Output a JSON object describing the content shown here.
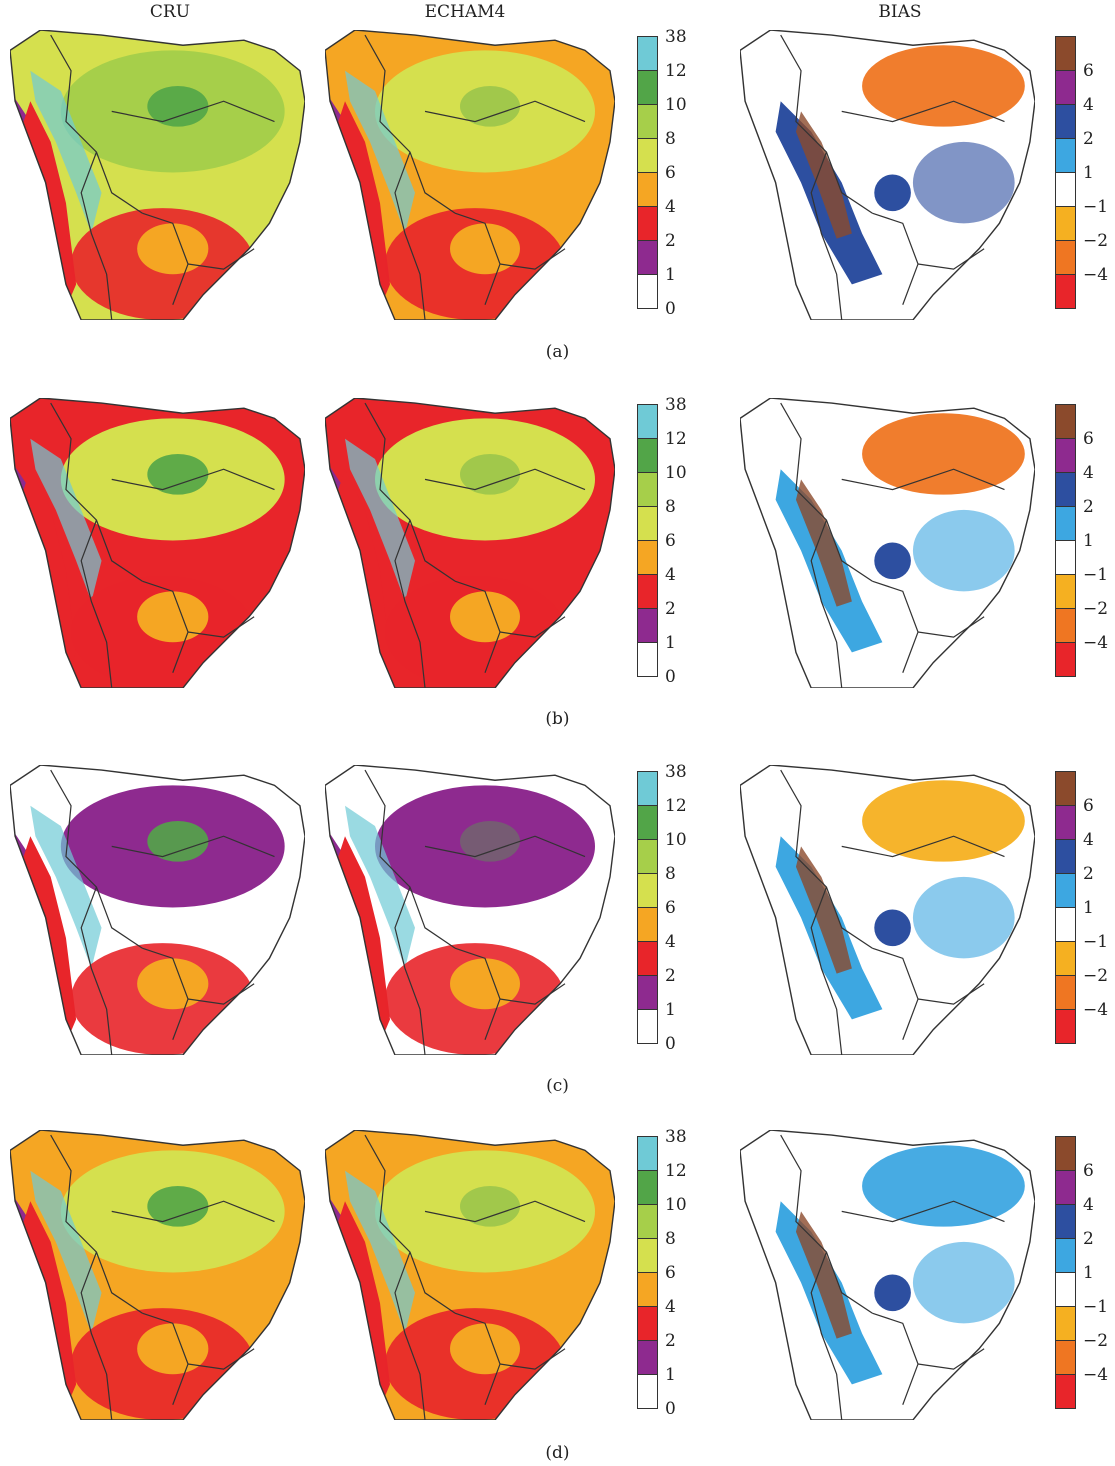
{
  "column_titles": [
    "CRU",
    "ECHAM4",
    "BIAS"
  ],
  "panel_labels": [
    "(a)",
    "(b)",
    "(c)",
    "(d)"
  ],
  "legend_abs": {
    "ticks": [
      "38",
      "12",
      "10",
      "8",
      "6",
      "4",
      "2",
      "1",
      "0"
    ],
    "colors": [
      "#6fcad6",
      "#52a548",
      "#a6cf4a",
      "#d5e04e",
      "#f5a623",
      "#e8252a",
      "#8e2a8f",
      "#ffffff"
    ]
  },
  "legend_bias": {
    "ticks": [
      "6",
      "4",
      "2",
      "1",
      "−1",
      "−2",
      "−4"
    ],
    "colors": [
      "#8b4a2c",
      "#8e2a8f",
      "#2d4fa0",
      "#3da7e1",
      "#ffffff",
      "#f5b021",
      "#ef7622",
      "#e8252a"
    ]
  },
  "panels": [
    {
      "cru_base": "#d5e04e",
      "cru_blob": "#a6cf4a",
      "echam_base": "#f5a623",
      "echam_blob": "#d5e04e",
      "bias_main": "#2d4fa0",
      "bias_ne": "#ef7622"
    },
    {
      "cru_base": "#e8252a",
      "cru_blob": "#d5e04e",
      "echam_base": "#e8252a",
      "echam_blob": "#d5e04e",
      "bias_main": "#3da7e1",
      "bias_ne": "#ef7622"
    },
    {
      "cru_base": "#ffffff",
      "cru_blob": "#8e2a8f",
      "echam_base": "#ffffff",
      "echam_blob": "#8e2a8f",
      "bias_main": "#3da7e1",
      "bias_ne": "#f5b021"
    },
    {
      "cru_base": "#f5a623",
      "cru_blob": "#d5e04e",
      "echam_base": "#f5a623",
      "echam_blob": "#d5e04e",
      "bias_main": "#3da7e1",
      "bias_ne": "#3da7e1"
    }
  ]
}
